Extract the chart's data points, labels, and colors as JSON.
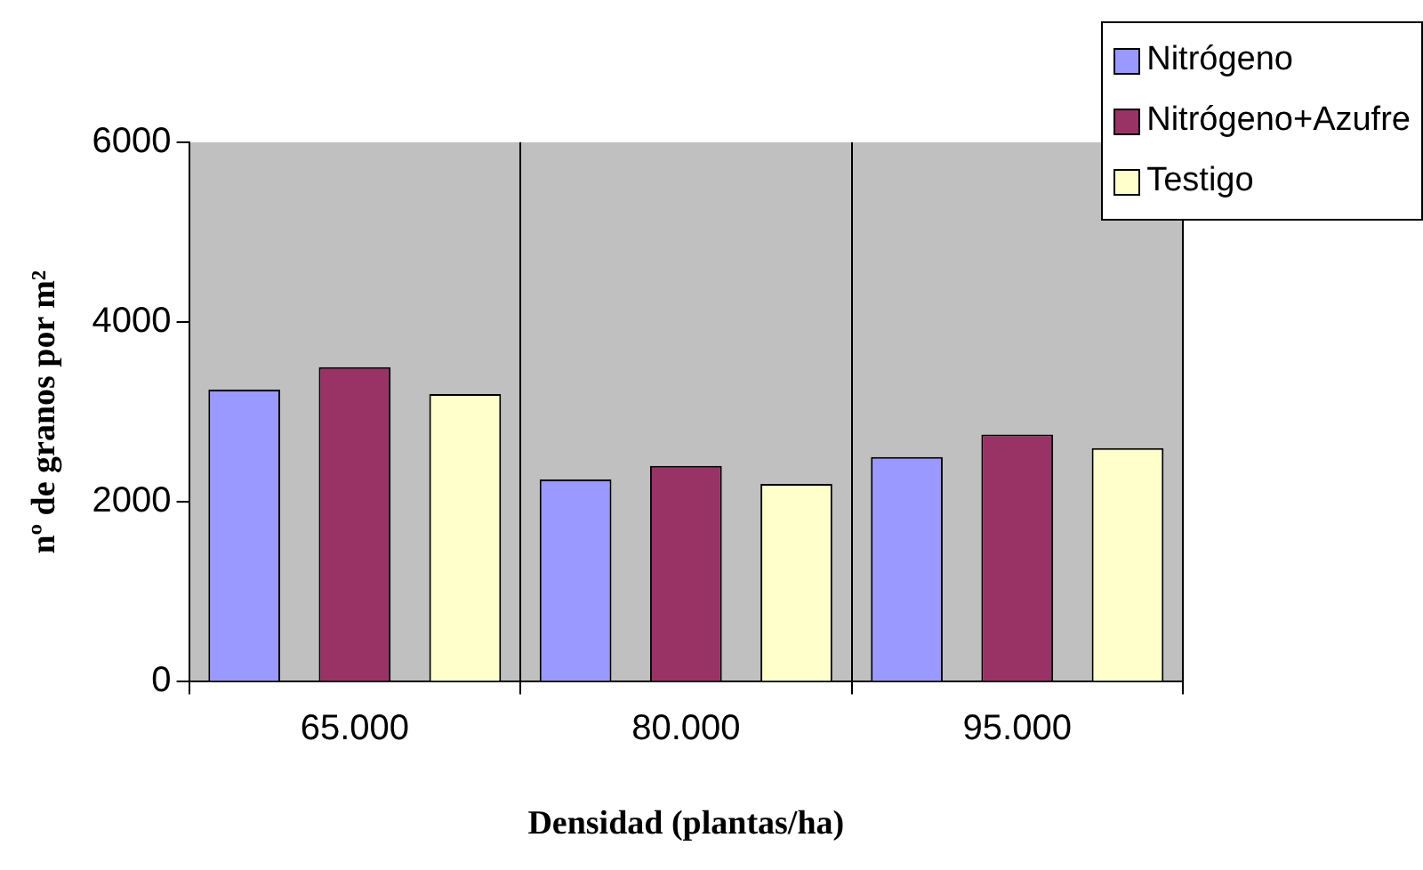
{
  "chart_data": {
    "type": "bar",
    "xlabel": "Densidad (plantas/ha)",
    "ylabel": "nº de granos por m²",
    "categories": [
      "65.000",
      "80.000",
      "95.000"
    ],
    "series": [
      {
        "name": "Nitrógeno",
        "color": "#9999ff",
        "values": [
          3250,
          2250,
          2500
        ]
      },
      {
        "name": "Nitrógeno+Azufre",
        "color": "#993366",
        "values": [
          3500,
          2400,
          2750
        ]
      },
      {
        "name": "Testigo",
        "color": "#ffffcc",
        "values": [
          3200,
          2200,
          2600
        ]
      }
    ],
    "ylim": [
      0,
      6000
    ],
    "yticks": [
      0,
      2000,
      4000,
      6000
    ],
    "grid": "x",
    "legend": "top right"
  }
}
